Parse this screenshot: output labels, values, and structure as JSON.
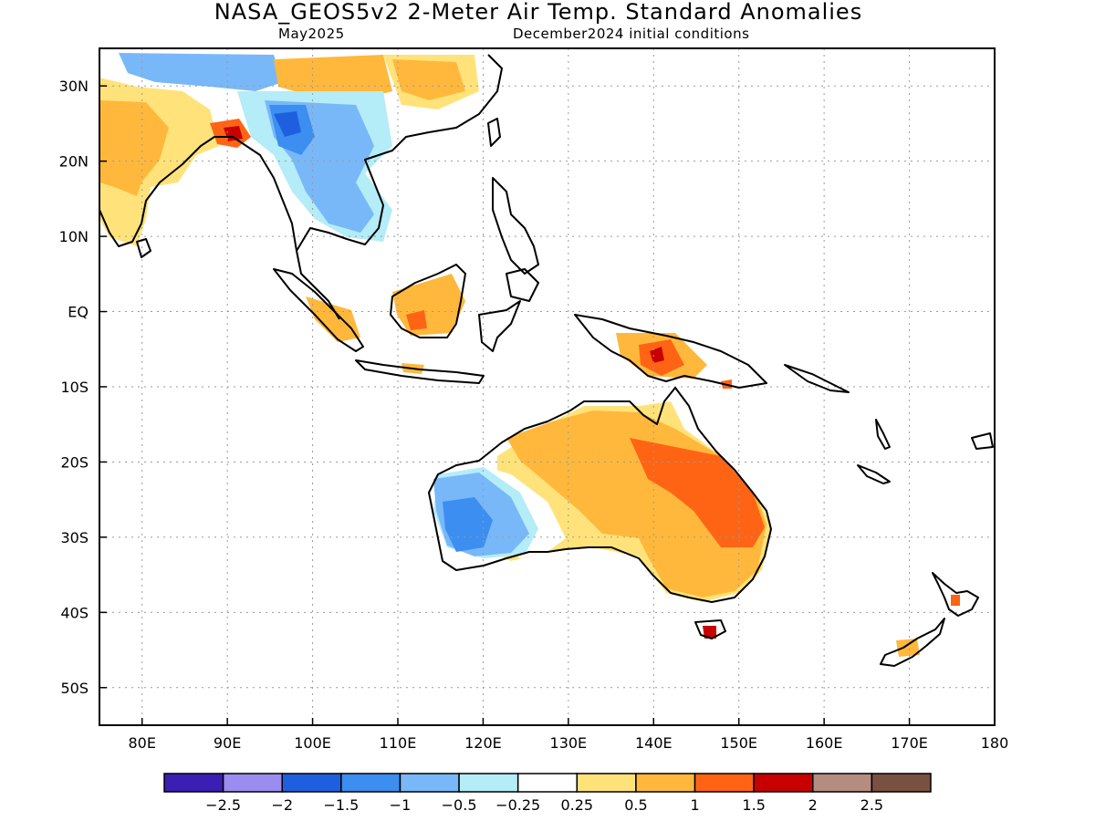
{
  "title": "NASA_GEOS5v2 2-Meter Air Temp. Standard Anomalies",
  "subtitle_left": "May2025",
  "subtitle_right": "December2024 initial conditions",
  "map": {
    "lon_range": [
      75,
      180
    ],
    "lat_range": [
      -55,
      35
    ],
    "lon_ticks": [
      "80E",
      "90E",
      "100E",
      "110E",
      "120E",
      "130E",
      "140E",
      "150E",
      "160E",
      "170E",
      "180"
    ],
    "lat_ticks": [
      "30N",
      "20N",
      "10N",
      "EQ",
      "10S",
      "20S",
      "30S",
      "40S",
      "50S"
    ],
    "grid": "dotted"
  },
  "colorbar": {
    "colors": [
      "#3a1fb4",
      "#9b8cf0",
      "#1e5fe0",
      "#3c8ef0",
      "#78b8f8",
      "#b4ecf8",
      "#ffffff",
      "#ffe37a",
      "#ffb83c",
      "#ff6414",
      "#c80000",
      "#b48c80",
      "#7a5040"
    ],
    "labels": [
      "-2.5",
      "-2",
      "-1.5",
      "-1",
      "-0.5",
      "-0.25",
      "0.25",
      "0.5",
      "1",
      "1.5",
      "2",
      "2.5"
    ]
  }
}
